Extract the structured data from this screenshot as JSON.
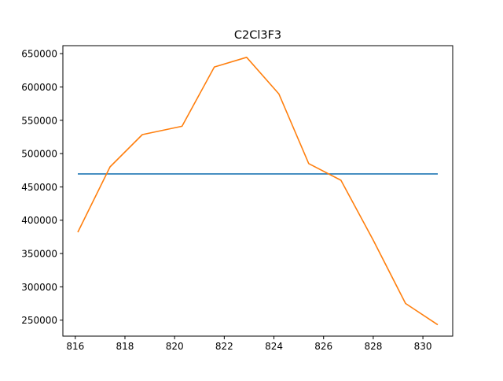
{
  "chart_data": {
    "type": "line",
    "title": "C2Cl3F3",
    "xlabel": "",
    "ylabel": "",
    "xlim": [
      815.5,
      831.2
    ],
    "ylim": [
      226000,
      662000
    ],
    "x_ticks": [
      816,
      818,
      820,
      822,
      824,
      826,
      828,
      830
    ],
    "y_ticks": [
      250000,
      300000,
      350000,
      400000,
      450000,
      500000,
      550000,
      600000,
      650000
    ],
    "grid": false,
    "legend": "none",
    "series": [
      {
        "color": "#1f77b4",
        "x": [
          816.1,
          830.6
        ],
        "y": [
          469500,
          469500
        ]
      },
      {
        "color": "#ff7f0e",
        "x": [
          816.1,
          817.4,
          818.7,
          820.3,
          821.6,
          822.9,
          824.2,
          825.4,
          826.7,
          828.0,
          829.3,
          830.6
        ],
        "y": [
          382000,
          480000,
          528500,
          541000,
          630000,
          644500,
          589500,
          485000,
          460000,
          370000,
          275000,
          243000
        ]
      }
    ]
  }
}
